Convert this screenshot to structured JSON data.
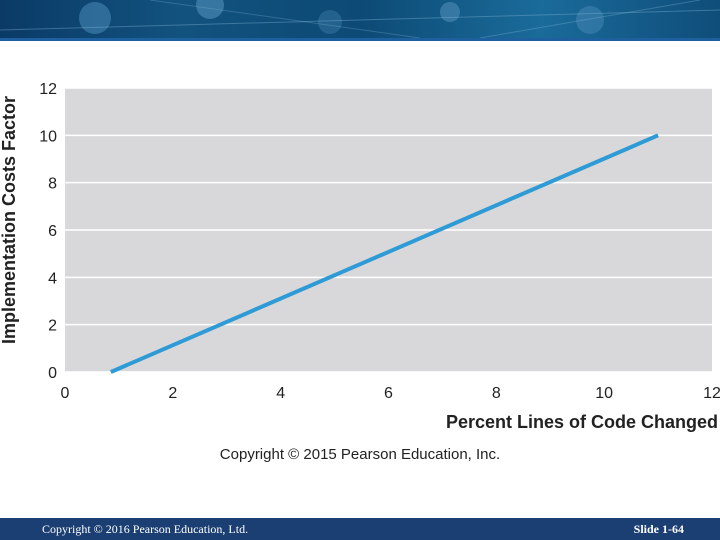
{
  "chart_data": {
    "type": "line",
    "xlabel": "Percent Lines of Code Changed",
    "ylabel": "Implementation Costs Factor",
    "xlim": [
      0,
      12
    ],
    "ylim": [
      0,
      12
    ],
    "x_ticks": [
      "0",
      "2",
      "4",
      "6",
      "8",
      "10",
      "12"
    ],
    "y_ticks": [
      "0",
      "2",
      "4",
      "6",
      "8",
      "10",
      "12"
    ],
    "grid": "horizontal",
    "series": [
      {
        "x": [
          0.85,
          11
        ],
        "y": [
          0,
          10
        ],
        "color": "#2e9bd6"
      }
    ],
    "background_color": "#d8d8da"
  },
  "source": "Copyright © 2015 Pearson Education, Inc.",
  "footer": {
    "left": "Copyright © 2016 Pearson Education, Ltd.",
    "right": "Slide 1-64"
  }
}
